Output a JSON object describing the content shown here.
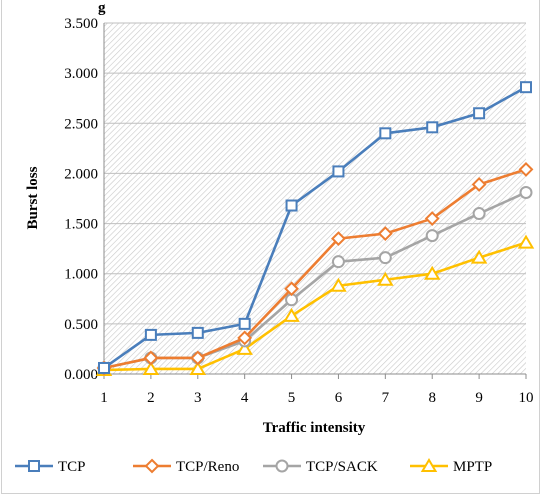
{
  "header": {
    "fragment": "g"
  },
  "chart_data": {
    "type": "line",
    "title": "",
    "xlabel": "Traffic intensity",
    "ylabel": "Burst loss",
    "categories": [
      "1",
      "2",
      "3",
      "4",
      "5",
      "6",
      "7",
      "8",
      "9",
      "10"
    ],
    "y_ticks": [
      "0.000",
      "0.500",
      "1.000",
      "1.500",
      "2.000",
      "2.500",
      "3.000",
      "3.500"
    ],
    "ylim": [
      0,
      3.5
    ],
    "grid": true,
    "legend_position": "bottom",
    "series": [
      {
        "name": "TCP",
        "color": "#4a7ebb",
        "marker": "square",
        "values": [
          0.06,
          0.39,
          0.41,
          0.5,
          1.68,
          2.02,
          2.4,
          2.46,
          2.6,
          2.86
        ]
      },
      {
        "name": "TCP/Reno",
        "color": "#ed7d31",
        "marker": "diamond",
        "values": [
          0.06,
          0.16,
          0.16,
          0.36,
          0.85,
          1.35,
          1.4,
          1.55,
          1.89,
          2.04
        ]
      },
      {
        "name": "TCP/SACK",
        "color": "#a5a5a5",
        "marker": "circle",
        "values": [
          0.06,
          0.16,
          0.16,
          0.33,
          0.74,
          1.12,
          1.16,
          1.38,
          1.6,
          1.81
        ]
      },
      {
        "name": "MPTP",
        "color": "#ffc000",
        "marker": "triangle",
        "values": [
          0.04,
          0.05,
          0.05,
          0.25,
          0.58,
          0.88,
          0.94,
          1.0,
          1.16,
          1.31
        ]
      }
    ]
  }
}
